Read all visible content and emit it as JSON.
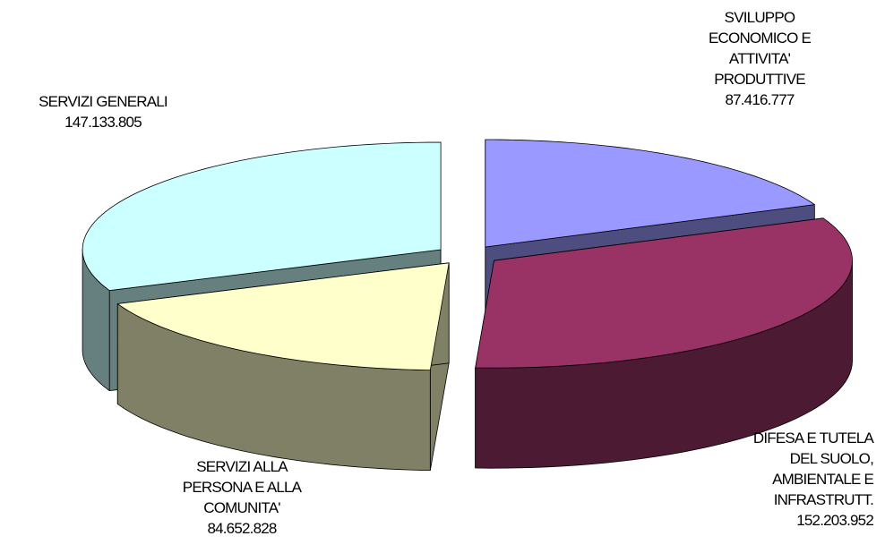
{
  "chart_data": {
    "type": "pie3d",
    "categories": [
      "SVILUPPO ECONOMICO E ATTIVITA' PRODUTTIVE",
      "DIFESA E TUTELA DEL SUOLO, AMBIENTALE E INFRASTRUTT.",
      "SERVIZI ALLA PERSONA E ALLA COMUNITA'",
      "SERVIZI GENERALI"
    ],
    "values": [
      87416777,
      152203952,
      84652828,
      147133805
    ],
    "value_labels": [
      "87.416.777",
      "152.203.952",
      "84.652.828",
      "147.133.805"
    ],
    "colors": [
      "#9999ff",
      "#993366",
      "#ffffcc",
      "#ccffff"
    ]
  }
}
